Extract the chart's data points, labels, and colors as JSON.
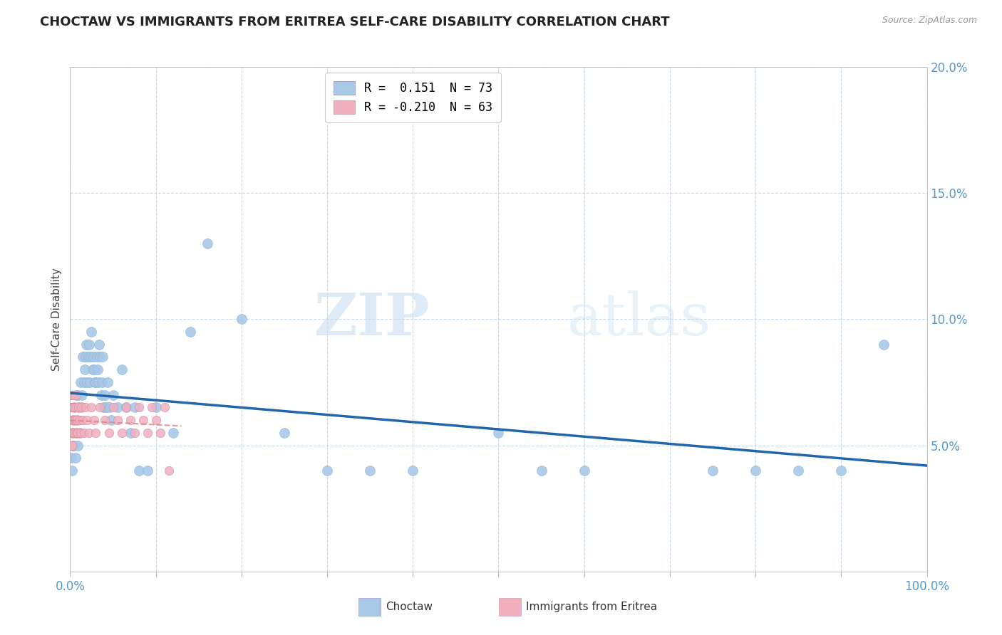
{
  "title": "CHOCTAW VS IMMIGRANTS FROM ERITREA SELF-CARE DISABILITY CORRELATION CHART",
  "source": "Source: ZipAtlas.com",
  "ylabel": "Self-Care Disability",
  "watermark_zip": "ZIP",
  "watermark_atlas": "atlas",
  "legend_r1": "R =  0.151  N = 73",
  "legend_r2": "R = -0.210  N = 63",
  "choctaw_color": "#a8c8e8",
  "eritrea_color": "#f0b0c0",
  "choctaw_line_color": "#2166ac",
  "eritrea_line_color": "#e08080",
  "choctaw_x": [
    0.001,
    0.002,
    0.003,
    0.003,
    0.004,
    0.005,
    0.005,
    0.006,
    0.007,
    0.007,
    0.008,
    0.009,
    0.009,
    0.01,
    0.011,
    0.012,
    0.013,
    0.014,
    0.015,
    0.016,
    0.017,
    0.018,
    0.019,
    0.02,
    0.021,
    0.022,
    0.023,
    0.024,
    0.025,
    0.026,
    0.027,
    0.028,
    0.029,
    0.03,
    0.031,
    0.032,
    0.033,
    0.034,
    0.035,
    0.036,
    0.037,
    0.038,
    0.039,
    0.04,
    0.042,
    0.044,
    0.046,
    0.048,
    0.05,
    0.055,
    0.06,
    0.065,
    0.07,
    0.075,
    0.08,
    0.09,
    0.1,
    0.12,
    0.14,
    0.16,
    0.2,
    0.25,
    0.3,
    0.35,
    0.4,
    0.5,
    0.55,
    0.6,
    0.75,
    0.8,
    0.85,
    0.9,
    0.95
  ],
  "choctaw_y": [
    0.045,
    0.04,
    0.055,
    0.05,
    0.06,
    0.05,
    0.065,
    0.045,
    0.07,
    0.055,
    0.06,
    0.05,
    0.07,
    0.065,
    0.055,
    0.075,
    0.065,
    0.07,
    0.085,
    0.075,
    0.08,
    0.085,
    0.09,
    0.075,
    0.085,
    0.09,
    0.075,
    0.085,
    0.095,
    0.08,
    0.085,
    0.08,
    0.075,
    0.075,
    0.085,
    0.08,
    0.075,
    0.09,
    0.085,
    0.07,
    0.075,
    0.085,
    0.065,
    0.07,
    0.065,
    0.075,
    0.065,
    0.06,
    0.07,
    0.065,
    0.08,
    0.065,
    0.055,
    0.065,
    0.04,
    0.04,
    0.065,
    0.055,
    0.095,
    0.13,
    0.1,
    0.055,
    0.04,
    0.04,
    0.04,
    0.055,
    0.04,
    0.04,
    0.04,
    0.04,
    0.04,
    0.04,
    0.09
  ],
  "eritrea_x": [
    0.0005,
    0.0006,
    0.0007,
    0.0008,
    0.0009,
    0.001,
    0.001,
    0.0012,
    0.0013,
    0.0014,
    0.0015,
    0.0016,
    0.0017,
    0.0018,
    0.002,
    0.002,
    0.0022,
    0.0024,
    0.0026,
    0.003,
    0.003,
    0.0032,
    0.0035,
    0.004,
    0.004,
    0.0045,
    0.005,
    0.005,
    0.006,
    0.006,
    0.007,
    0.007,
    0.008,
    0.009,
    0.01,
    0.011,
    0.012,
    0.013,
    0.015,
    0.016,
    0.018,
    0.02,
    0.022,
    0.025,
    0.028,
    0.03,
    0.035,
    0.04,
    0.045,
    0.05,
    0.055,
    0.06,
    0.065,
    0.07,
    0.075,
    0.08,
    0.085,
    0.09,
    0.095,
    0.1,
    0.105,
    0.11,
    0.115
  ],
  "eritrea_y": [
    0.07,
    0.065,
    0.06,
    0.055,
    0.05,
    0.065,
    0.055,
    0.06,
    0.055,
    0.05,
    0.065,
    0.06,
    0.055,
    0.05,
    0.065,
    0.055,
    0.06,
    0.055,
    0.07,
    0.065,
    0.055,
    0.06,
    0.055,
    0.065,
    0.055,
    0.06,
    0.065,
    0.055,
    0.07,
    0.06,
    0.065,
    0.055,
    0.06,
    0.055,
    0.065,
    0.06,
    0.055,
    0.065,
    0.06,
    0.055,
    0.065,
    0.06,
    0.055,
    0.065,
    0.06,
    0.055,
    0.065,
    0.06,
    0.055,
    0.065,
    0.06,
    0.055,
    0.065,
    0.06,
    0.055,
    0.065,
    0.06,
    0.055,
    0.065,
    0.06,
    0.055,
    0.065,
    0.04
  ],
  "xlim": [
    0.0,
    1.0
  ],
  "ylim": [
    0.0,
    0.2
  ],
  "xtick_pos": [
    0.0,
    0.1,
    0.2,
    0.3,
    0.4,
    0.5,
    0.6,
    0.7,
    0.8,
    0.9,
    1.0
  ],
  "ytick_pos": [
    0.0,
    0.05,
    0.1,
    0.15,
    0.2
  ],
  "grid_color": "#c8daea",
  "title_color": "#222222",
  "tick_color": "#5599cc",
  "axis_color": "#bbbbbb"
}
